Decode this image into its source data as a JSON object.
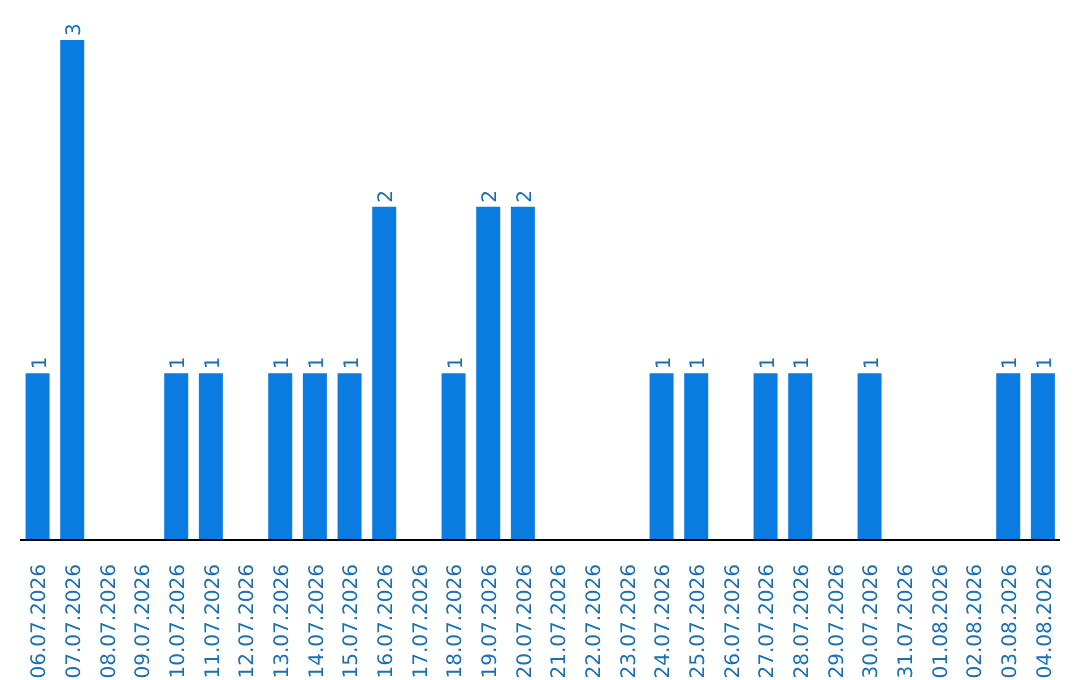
{
  "chart_data": {
    "type": "bar",
    "categories": [
      "06.07.2026",
      "07.07.2026",
      "08.07.2026",
      "09.07.2026",
      "10.07.2026",
      "11.07.2026",
      "12.07.2026",
      "13.07.2026",
      "14.07.2026",
      "15.07.2026",
      "16.07.2026",
      "17.07.2026",
      "18.07.2026",
      "19.07.2026",
      "20.07.2026",
      "21.07.2026",
      "22.07.2026",
      "23.07.2026",
      "24.07.2026",
      "25.07.2026",
      "26.07.2026",
      "27.07.2026",
      "28.07.2026",
      "29.07.2026",
      "30.07.2026",
      "31.07.2026",
      "01.08.2026",
      "02.08.2026",
      "03.08.2026",
      "04.08.2026"
    ],
    "values": [
      1,
      3,
      0,
      0,
      1,
      1,
      0,
      1,
      1,
      1,
      2,
      0,
      1,
      2,
      2,
      0,
      0,
      0,
      1,
      1,
      0,
      1,
      1,
      0,
      1,
      0,
      0,
      0,
      1,
      1
    ],
    "value_labels": [
      "1",
      "3",
      null,
      null,
      "1",
      "1",
      null,
      "1",
      "1",
      "1",
      "2",
      null,
      "1",
      "2",
      "2",
      null,
      null,
      null,
      "1",
      "1",
      null,
      "1",
      "1",
      null,
      "1",
      null,
      null,
      null,
      "1",
      "1"
    ],
    "color": "#0a7be0",
    "grid": false,
    "legend": false
  }
}
